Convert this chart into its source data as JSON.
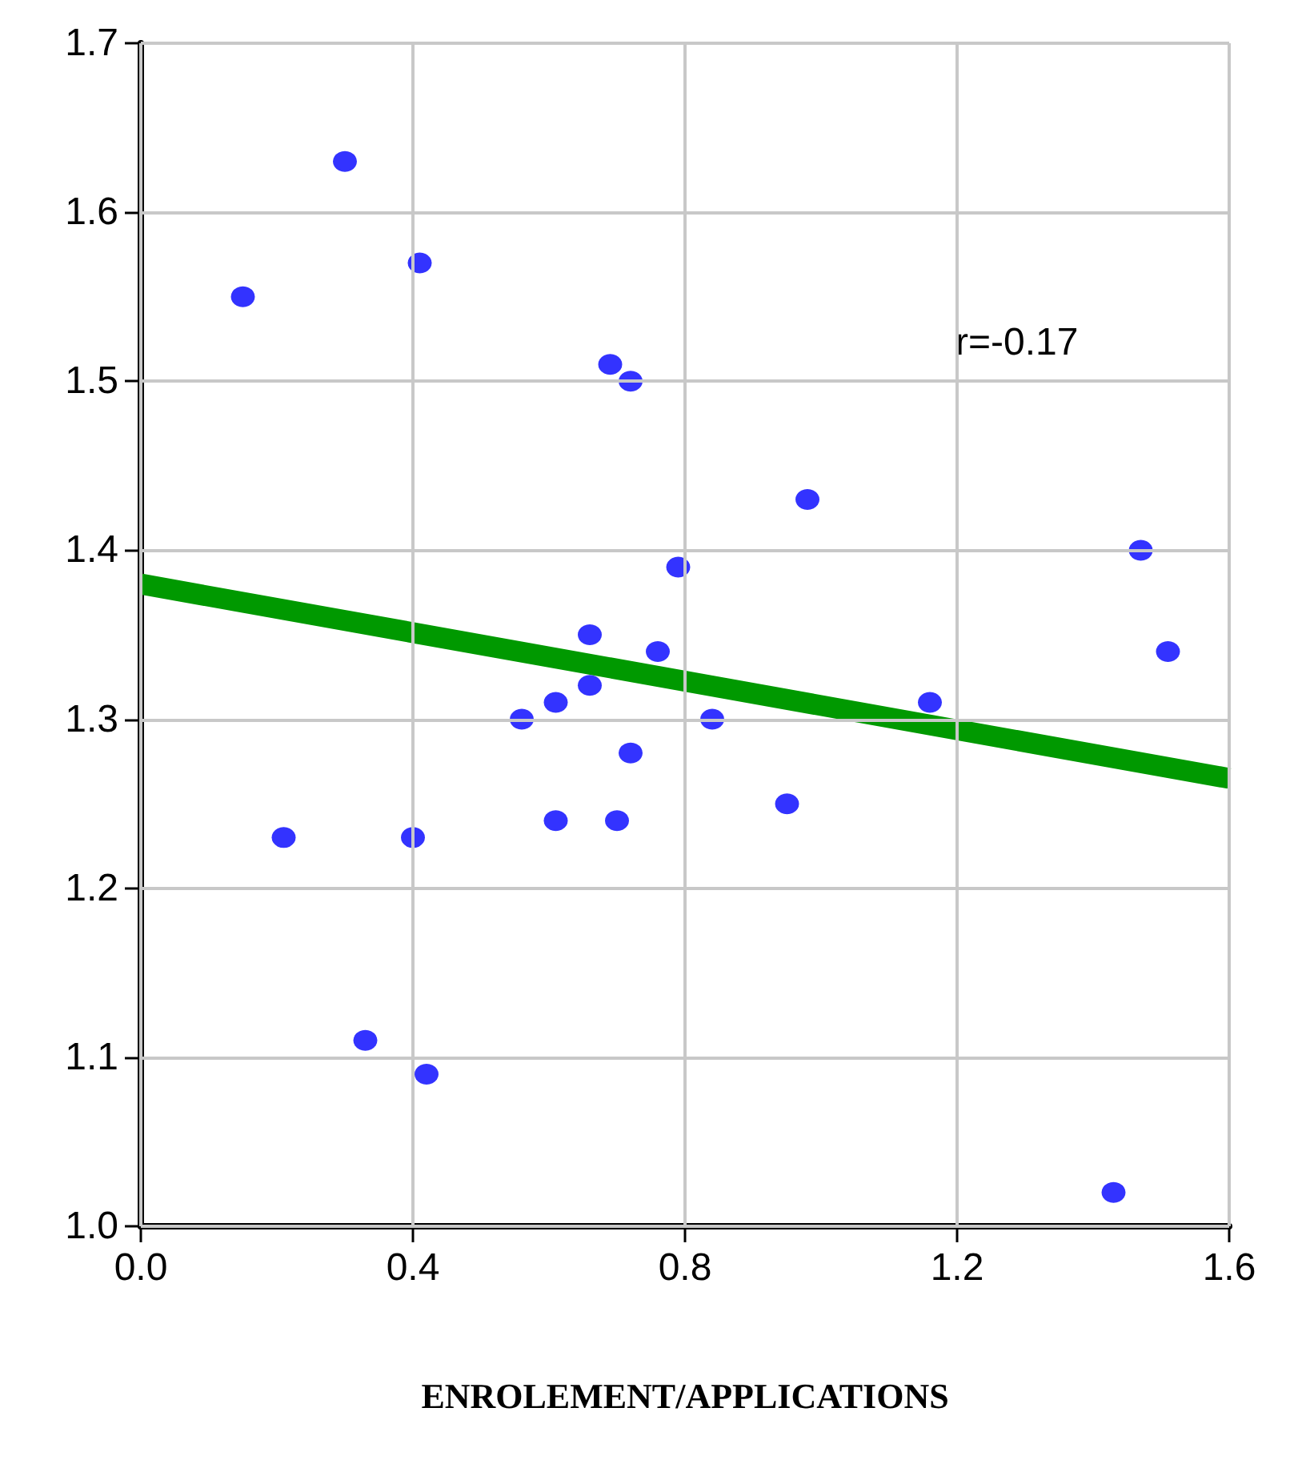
{
  "chart_data": {
    "type": "scatter",
    "xlabel": "ENROLEMENT/APPLICATIONS",
    "annotations": [
      "r=-0.17"
    ],
    "xlim": [
      0,
      1.6
    ],
    "xticks": [
      {
        "value": 0,
        "label": "0.0"
      },
      0.4,
      0.8,
      1.2,
      1.6
    ],
    "ylim": [
      1.0,
      1.7
    ],
    "yticks": [
      {
        "value": 1.0,
        "label": "1.0"
      },
      1.1,
      1.2,
      1.3,
      1.4,
      1.5,
      1.6,
      1.7
    ],
    "grid": true,
    "marker": "circle",
    "series": [
      {
        "color": "#0000ff",
        "x": [
          0.15,
          0.3,
          0.41,
          0.69,
          0.72,
          0.98,
          1.47,
          1.51,
          0.79,
          0.66,
          0.76,
          0.56,
          0.61,
          0.66,
          0.84,
          1.16,
          0.72,
          0.95,
          0.61,
          0.7,
          0.4,
          0.21,
          0.33,
          0.42,
          1.43
        ],
        "values": [
          1.55,
          1.63,
          1.57,
          1.51,
          1.5,
          1.43,
          1.4,
          1.34,
          1.39,
          1.35,
          1.34,
          1.3,
          1.31,
          1.32,
          1.3,
          1.31,
          1.28,
          1.25,
          1.24,
          1.24,
          1.23,
          1.23,
          1.11,
          1.09,
          1.02
        ]
      },
      {
        "type": "line",
        "color": "#009900",
        "marker": "none",
        "x": [
          0,
          1.6
        ],
        "values": [
          1.38,
          1.265
        ]
      }
    ]
  }
}
